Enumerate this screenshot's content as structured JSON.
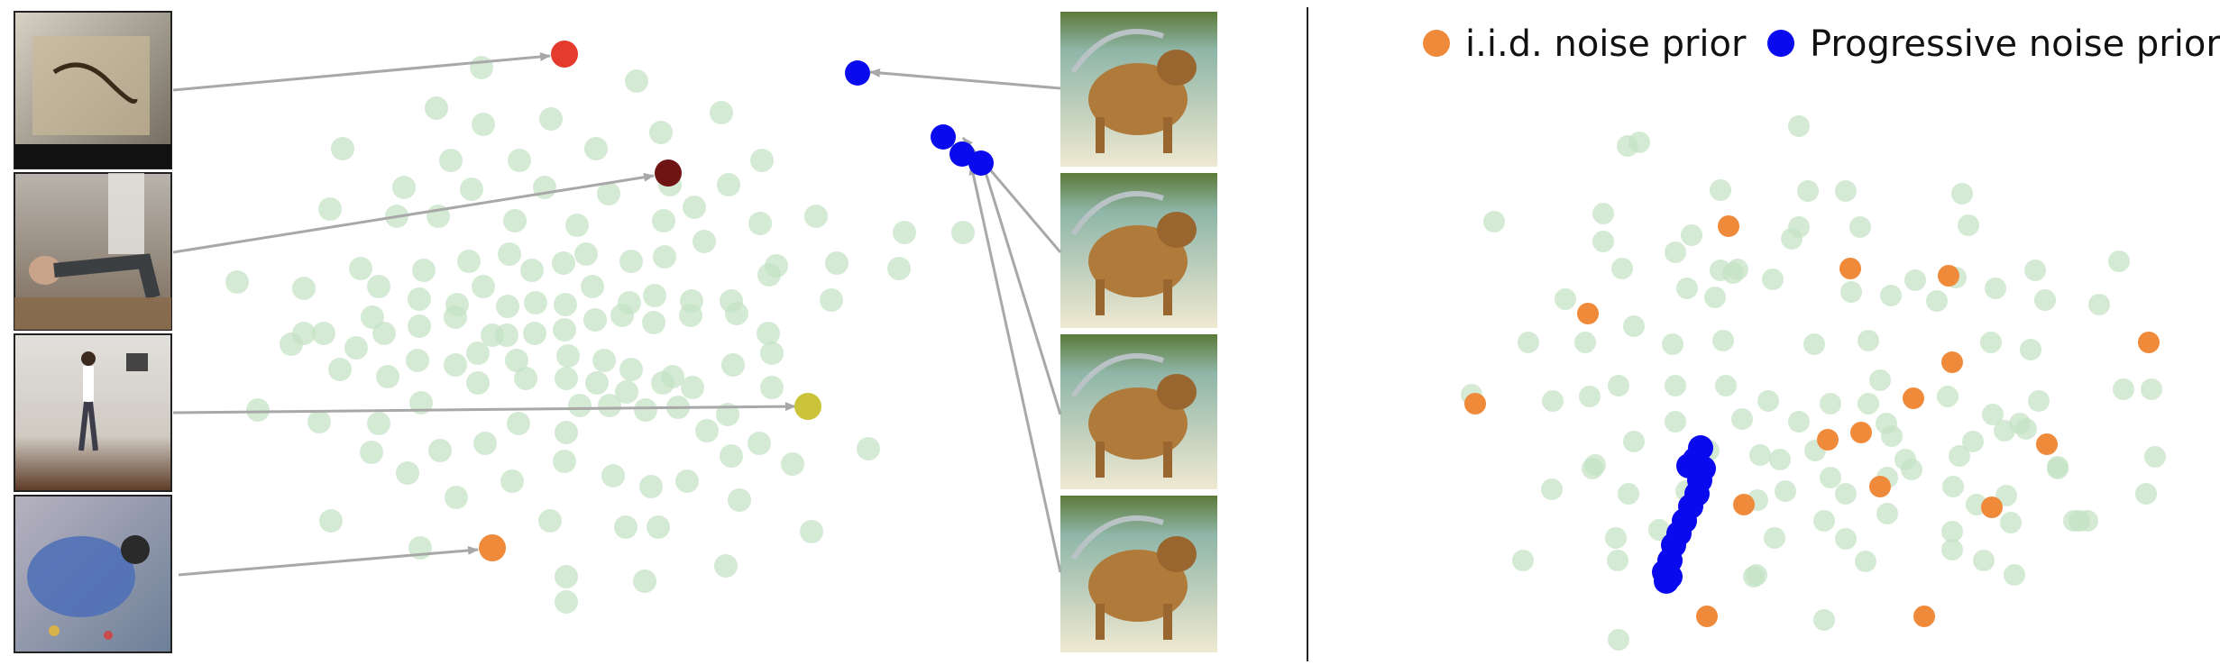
{
  "legend": {
    "iid_label": "i.i.d. noise prior",
    "progressive_label": "Progressive noise prior"
  },
  "colors": {
    "background_dot": "#c5e3c5",
    "iid": "#ef8a3a",
    "progressive": "#0a0aee",
    "arrow": "#a8a8a8",
    "divider": "#222222",
    "highlight_red": "#e53a2e",
    "highlight_darkred": "#6e1414",
    "highlight_yellow": "#cbc43a",
    "highlight_orange": "#ef8a3a",
    "highlight_blue": "#0a0aee"
  },
  "thumbnails_left": [
    {
      "name": "thumbnail-woodburning",
      "scene": "wood burning on a box"
    },
    {
      "name": "thumbnail-pushup",
      "scene": "person doing push-ups"
    },
    {
      "name": "thumbnail-dancer",
      "scene": "dancer in studio"
    },
    {
      "name": "thumbnail-child-painting",
      "scene": "child painting"
    }
  ],
  "thumbnails_right": [
    {
      "name": "thumbnail-dog-frame-1",
      "scene": "dog being washed"
    },
    {
      "name": "thumbnail-dog-frame-2",
      "scene": "dog being washed"
    },
    {
      "name": "thumbnail-dog-frame-3",
      "scene": "dog being washed"
    },
    {
      "name": "thumbnail-dog-frame-4",
      "scene": "dog being washed"
    }
  ]
}
